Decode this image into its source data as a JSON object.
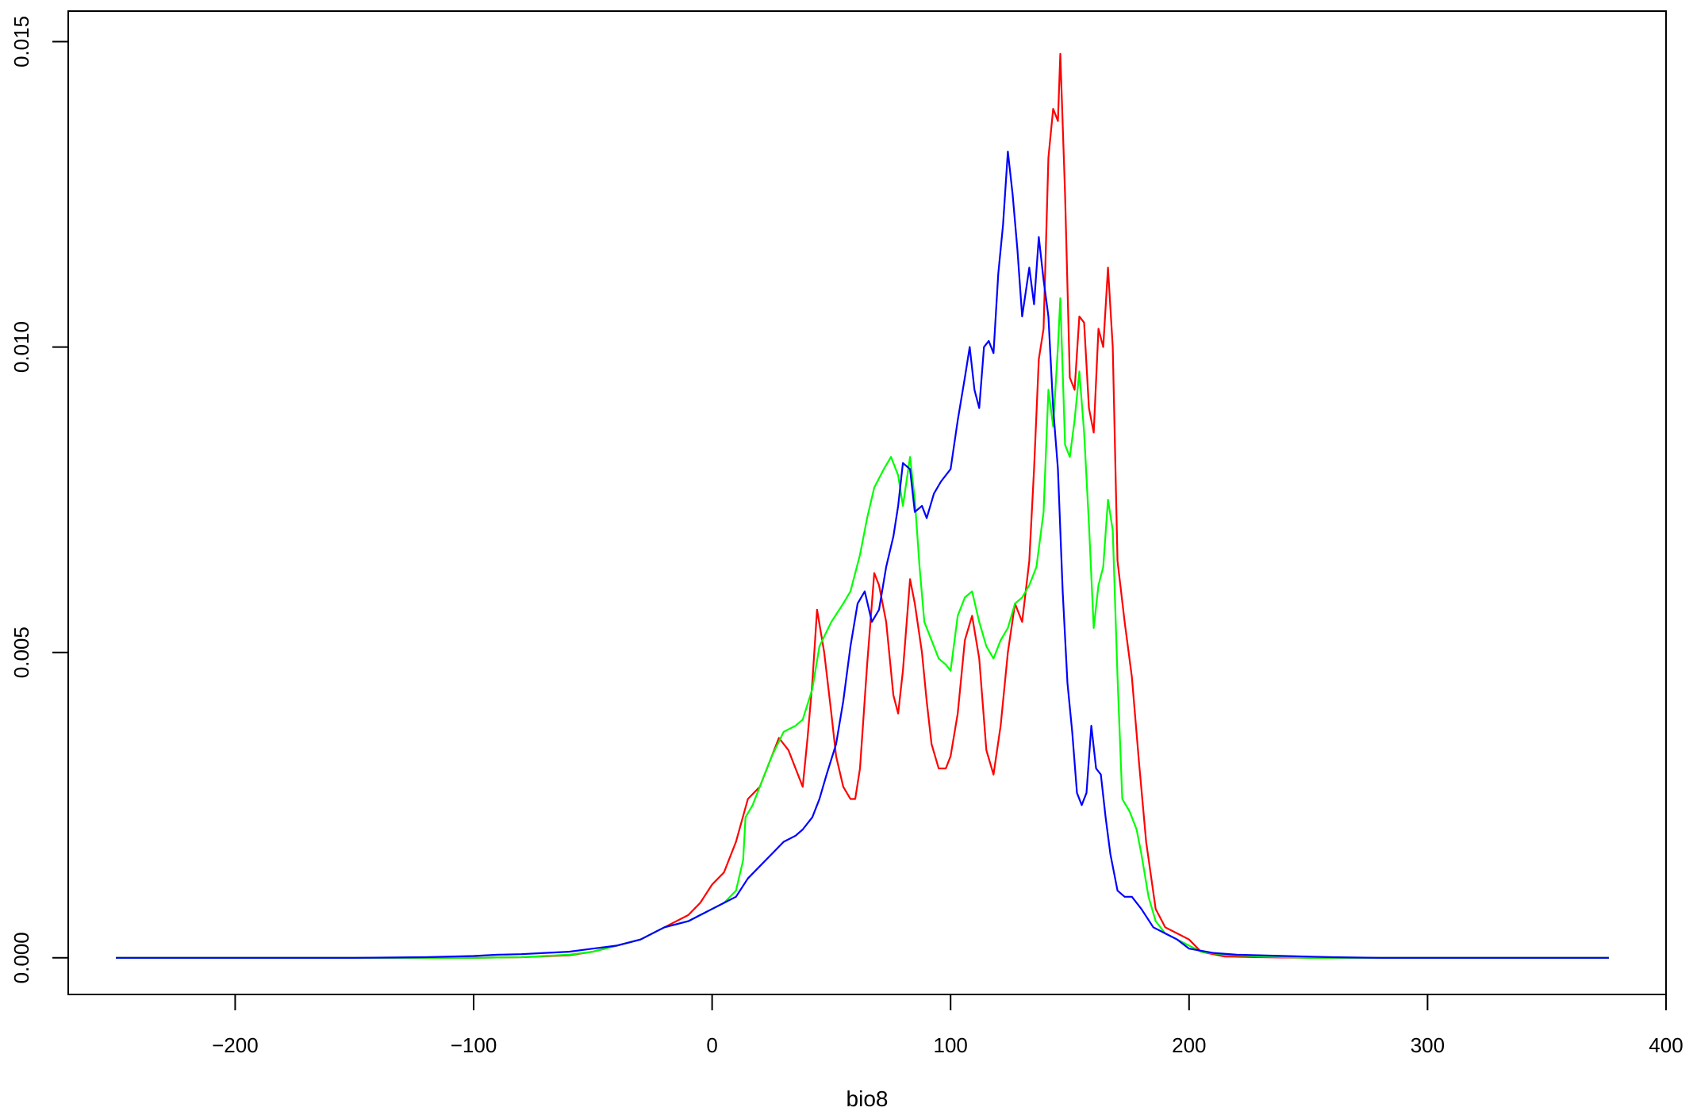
{
  "chart_data": {
    "type": "line",
    "title": "",
    "xlabel": "bio8",
    "ylabel": "",
    "xlim": [
      -270,
      400
    ],
    "ylim": [
      -0.0006,
      0.0155
    ],
    "x_ticks": [
      -200,
      -100,
      0,
      100,
      200,
      300,
      400
    ],
    "x_tick_labels": [
      "−200",
      "−100",
      "0",
      "100",
      "200",
      "300",
      "400"
    ],
    "y_ticks": [
      0.0,
      0.005,
      0.01,
      0.015
    ],
    "y_tick_labels": [
      "0.000",
      "0.005",
      "0.010",
      "0.015"
    ],
    "grid": false,
    "legend": "none",
    "series": [
      {
        "color": "#ff0000",
        "points": [
          [
            -250,
            0
          ],
          [
            -150,
            0
          ],
          [
            -100,
            0
          ],
          [
            -80,
            1e-05
          ],
          [
            -60,
            4e-05
          ],
          [
            -50,
            0.0001
          ],
          [
            -40,
            0.0002
          ],
          [
            -30,
            0.0003
          ],
          [
            -20,
            0.0005
          ],
          [
            -10,
            0.0007
          ],
          [
            -5,
            0.0009
          ],
          [
            0,
            0.0012
          ],
          [
            5,
            0.0014
          ],
          [
            10,
            0.0019
          ],
          [
            15,
            0.0026
          ],
          [
            20,
            0.0028
          ],
          [
            25,
            0.0033
          ],
          [
            28,
            0.0036
          ],
          [
            32,
            0.0034
          ],
          [
            35,
            0.0031
          ],
          [
            38,
            0.0028
          ],
          [
            40,
            0.0036
          ],
          [
            42,
            0.0045
          ],
          [
            44,
            0.0057
          ],
          [
            47,
            0.005
          ],
          [
            50,
            0.004
          ],
          [
            52,
            0.0033
          ],
          [
            55,
            0.0028
          ],
          [
            58,
            0.0026
          ],
          [
            60,
            0.0026
          ],
          [
            62,
            0.0031
          ],
          [
            65,
            0.0048
          ],
          [
            68,
            0.0063
          ],
          [
            70,
            0.0061
          ],
          [
            73,
            0.0055
          ],
          [
            76,
            0.0043
          ],
          [
            78,
            0.004
          ],
          [
            80,
            0.0047
          ],
          [
            83,
            0.0062
          ],
          [
            85,
            0.0058
          ],
          [
            88,
            0.005
          ],
          [
            90,
            0.0042
          ],
          [
            92,
            0.0035
          ],
          [
            95,
            0.0031
          ],
          [
            98,
            0.0031
          ],
          [
            100,
            0.0033
          ],
          [
            103,
            0.004
          ],
          [
            106,
            0.0052
          ],
          [
            109,
            0.0056
          ],
          [
            112,
            0.0049
          ],
          [
            115,
            0.0034
          ],
          [
            118,
            0.003
          ],
          [
            121,
            0.0038
          ],
          [
            124,
            0.005
          ],
          [
            127,
            0.0058
          ],
          [
            130,
            0.0055
          ],
          [
            133,
            0.0065
          ],
          [
            135,
            0.008
          ],
          [
            137,
            0.0098
          ],
          [
            139,
            0.0103
          ],
          [
            141,
            0.0131
          ],
          [
            143,
            0.0139
          ],
          [
            145,
            0.0137
          ],
          [
            146,
            0.0148
          ],
          [
            148,
            0.0125
          ],
          [
            150,
            0.0095
          ],
          [
            152,
            0.0093
          ],
          [
            154,
            0.0105
          ],
          [
            156,
            0.0104
          ],
          [
            158,
            0.009
          ],
          [
            160,
            0.0086
          ],
          [
            162,
            0.0103
          ],
          [
            164,
            0.01
          ],
          [
            166,
            0.0113
          ],
          [
            168,
            0.01
          ],
          [
            170,
            0.0065
          ],
          [
            173,
            0.0055
          ],
          [
            176,
            0.0046
          ],
          [
            179,
            0.0032
          ],
          [
            182,
            0.0019
          ],
          [
            186,
            0.0008
          ],
          [
            190,
            0.0005
          ],
          [
            195,
            0.0004
          ],
          [
            200,
            0.0003
          ],
          [
            205,
            0.0001
          ],
          [
            215,
            2e-05
          ],
          [
            230,
            1e-05
          ],
          [
            250,
            0
          ],
          [
            300,
            0
          ],
          [
            376,
            0
          ]
        ]
      },
      {
        "color": "#00ff00",
        "points": [
          [
            -250,
            0
          ],
          [
            -150,
            0
          ],
          [
            -100,
            0
          ],
          [
            -80,
            1e-05
          ],
          [
            -60,
            5e-05
          ],
          [
            -50,
            0.0001
          ],
          [
            -40,
            0.0002
          ],
          [
            -30,
            0.0003
          ],
          [
            -20,
            0.0005
          ],
          [
            -10,
            0.0006
          ],
          [
            -5,
            0.0007
          ],
          [
            0,
            0.0008
          ],
          [
            5,
            0.0009
          ],
          [
            10,
            0.0011
          ],
          [
            13,
            0.0016
          ],
          [
            14,
            0.0023
          ],
          [
            17,
            0.0025
          ],
          [
            20,
            0.0028
          ],
          [
            25,
            0.0033
          ],
          [
            30,
            0.0037
          ],
          [
            35,
            0.0038
          ],
          [
            38,
            0.0039
          ],
          [
            42,
            0.0044
          ],
          [
            45,
            0.0051
          ],
          [
            50,
            0.0055
          ],
          [
            55,
            0.0058
          ],
          [
            58,
            0.006
          ],
          [
            62,
            0.0066
          ],
          [
            65,
            0.0072
          ],
          [
            68,
            0.0077
          ],
          [
            72,
            0.008
          ],
          [
            75,
            0.0082
          ],
          [
            78,
            0.0079
          ],
          [
            80,
            0.0074
          ],
          [
            83,
            0.0082
          ],
          [
            85,
            0.0075
          ],
          [
            87,
            0.0064
          ],
          [
            89,
            0.0055
          ],
          [
            92,
            0.0052
          ],
          [
            95,
            0.0049
          ],
          [
            98,
            0.0048
          ],
          [
            100,
            0.0047
          ],
          [
            103,
            0.0056
          ],
          [
            106,
            0.0059
          ],
          [
            109,
            0.006
          ],
          [
            112,
            0.0055
          ],
          [
            115,
            0.0051
          ],
          [
            118,
            0.0049
          ],
          [
            121,
            0.0052
          ],
          [
            124,
            0.0054
          ],
          [
            127,
            0.0058
          ],
          [
            130,
            0.0059
          ],
          [
            133,
            0.0061
          ],
          [
            136,
            0.0064
          ],
          [
            139,
            0.0073
          ],
          [
            141,
            0.0093
          ],
          [
            143,
            0.0087
          ],
          [
            145,
            0.01
          ],
          [
            146,
            0.0108
          ],
          [
            148,
            0.0084
          ],
          [
            150,
            0.0082
          ],
          [
            152,
            0.0088
          ],
          [
            154,
            0.0096
          ],
          [
            156,
            0.0086
          ],
          [
            158,
            0.0071
          ],
          [
            160,
            0.0054
          ],
          [
            162,
            0.0061
          ],
          [
            164,
            0.0064
          ],
          [
            166,
            0.0075
          ],
          [
            168,
            0.007
          ],
          [
            170,
            0.0046
          ],
          [
            172,
            0.0026
          ],
          [
            175,
            0.0024
          ],
          [
            178,
            0.0021
          ],
          [
            180,
            0.0017
          ],
          [
            183,
            0.001
          ],
          [
            186,
            0.0006
          ],
          [
            190,
            0.0004
          ],
          [
            195,
            0.0003
          ],
          [
            200,
            0.0002
          ],
          [
            205,
            0.0001
          ],
          [
            215,
            5e-05
          ],
          [
            230,
            2e-05
          ],
          [
            250,
            0
          ],
          [
            300,
            0
          ],
          [
            376,
            0
          ]
        ]
      },
      {
        "color": "#0000ff",
        "points": [
          [
            -250,
            0
          ],
          [
            -150,
            0
          ],
          [
            -120,
            1e-05
          ],
          [
            -100,
            3e-05
          ],
          [
            -90,
            5e-05
          ],
          [
            -80,
            6e-05
          ],
          [
            -70,
            8e-05
          ],
          [
            -60,
            0.0001
          ],
          [
            -50,
            0.00015
          ],
          [
            -40,
            0.0002
          ],
          [
            -30,
            0.0003
          ],
          [
            -20,
            0.0005
          ],
          [
            -10,
            0.0006
          ],
          [
            -5,
            0.0007
          ],
          [
            0,
            0.0008
          ],
          [
            5,
            0.0009
          ],
          [
            10,
            0.001
          ],
          [
            15,
            0.0013
          ],
          [
            20,
            0.0015
          ],
          [
            25,
            0.0017
          ],
          [
            30,
            0.0019
          ],
          [
            35,
            0.002
          ],
          [
            38,
            0.0021
          ],
          [
            42,
            0.0023
          ],
          [
            45,
            0.0026
          ],
          [
            48,
            0.003
          ],
          [
            52,
            0.0035
          ],
          [
            55,
            0.0042
          ],
          [
            58,
            0.0051
          ],
          [
            61,
            0.0058
          ],
          [
            64,
            0.006
          ],
          [
            67,
            0.0055
          ],
          [
            70,
            0.0057
          ],
          [
            73,
            0.0064
          ],
          [
            76,
            0.0069
          ],
          [
            78,
            0.0074
          ],
          [
            80,
            0.0081
          ],
          [
            83,
            0.008
          ],
          [
            85,
            0.0073
          ],
          [
            88,
            0.0074
          ],
          [
            90,
            0.0072
          ],
          [
            93,
            0.0076
          ],
          [
            96,
            0.0078
          ],
          [
            100,
            0.008
          ],
          [
            103,
            0.0088
          ],
          [
            106,
            0.0095
          ],
          [
            108,
            0.01
          ],
          [
            110,
            0.0093
          ],
          [
            112,
            0.009
          ],
          [
            114,
            0.01
          ],
          [
            116,
            0.0101
          ],
          [
            118,
            0.0099
          ],
          [
            120,
            0.0112
          ],
          [
            122,
            0.012
          ],
          [
            124,
            0.0132
          ],
          [
            126,
            0.0125
          ],
          [
            128,
            0.0116
          ],
          [
            130,
            0.0105
          ],
          [
            133,
            0.0113
          ],
          [
            135,
            0.0107
          ],
          [
            137,
            0.0118
          ],
          [
            139,
            0.0111
          ],
          [
            141,
            0.0105
          ],
          [
            143,
            0.009
          ],
          [
            145,
            0.008
          ],
          [
            147,
            0.006
          ],
          [
            149,
            0.0045
          ],
          [
            151,
            0.0037
          ],
          [
            153,
            0.0027
          ],
          [
            155,
            0.0025
          ],
          [
            157,
            0.0027
          ],
          [
            159,
            0.0038
          ],
          [
            161,
            0.0031
          ],
          [
            163,
            0.003
          ],
          [
            165,
            0.0023
          ],
          [
            167,
            0.0017
          ],
          [
            170,
            0.0011
          ],
          [
            173,
            0.001
          ],
          [
            176,
            0.001
          ],
          [
            180,
            0.0008
          ],
          [
            185,
            0.0005
          ],
          [
            190,
            0.0004
          ],
          [
            195,
            0.0003
          ],
          [
            200,
            0.00015
          ],
          [
            210,
            8e-05
          ],
          [
            220,
            5e-05
          ],
          [
            240,
            3e-05
          ],
          [
            260,
            1e-05
          ],
          [
            280,
            0
          ],
          [
            300,
            0
          ],
          [
            376,
            0
          ]
        ]
      }
    ]
  }
}
